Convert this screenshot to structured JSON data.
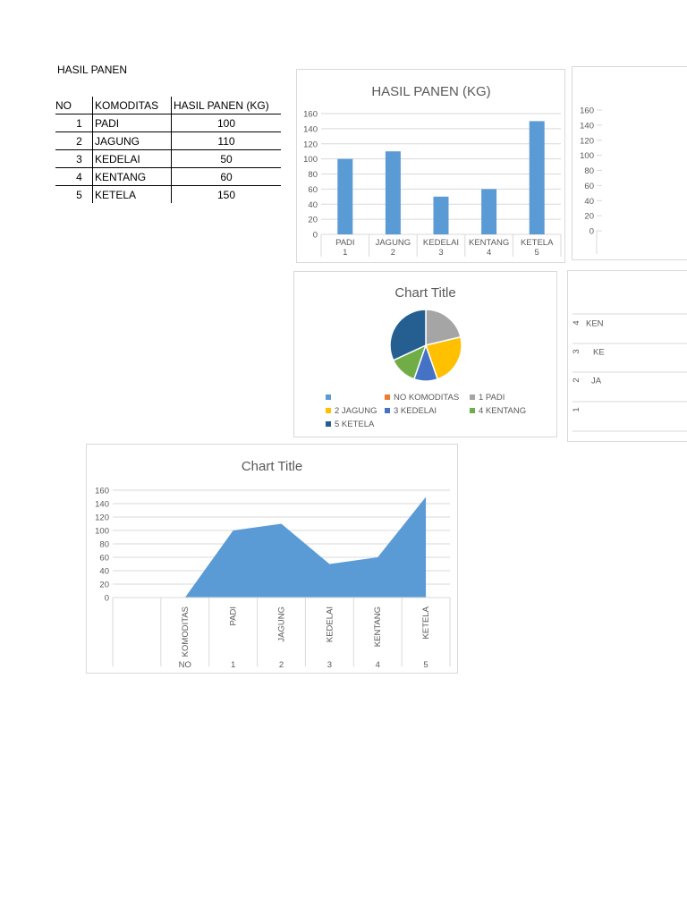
{
  "document": {
    "title": "HASIL PANEN"
  },
  "table": {
    "headers": [
      "NO",
      "KOMODITAS",
      "HASIL PANEN (KG)"
    ],
    "rows": [
      {
        "no": "1",
        "komoditas": "PADI",
        "hasil": "100"
      },
      {
        "no": "2",
        "komoditas": "JAGUNG",
        "hasil": "110"
      },
      {
        "no": "3",
        "komoditas": "KEDELAI",
        "hasil": "50"
      },
      {
        "no": "4",
        "komoditas": "KENTANG",
        "hasil": "60"
      },
      {
        "no": "5",
        "komoditas": "KETELA",
        "hasil": "150"
      }
    ]
  },
  "colors": {
    "bar_blue": "#5b9bd5",
    "orange": "#ed7d31",
    "gray": "#a5a5a5",
    "yellow": "#ffc000",
    "mid_blue": "#4472c4",
    "green": "#70ad47",
    "dark_blue": "#255e91",
    "gridline": "#d9d9d9",
    "axis_text": "#595959"
  },
  "chart_data": [
    {
      "id": "bar-chart",
      "type": "bar",
      "title": "HASIL PANEN (KG)",
      "categories": [
        "PADI\n1",
        "JAGUNG\n2",
        "KEDELAI\n3",
        "KENTANG\n4",
        "KETELA\n5"
      ],
      "category_labels": [
        [
          "PADI",
          "1"
        ],
        [
          "JAGUNG",
          "2"
        ],
        [
          "KEDELAI",
          "3"
        ],
        [
          "KENTANG",
          "4"
        ],
        [
          "KETELA",
          "5"
        ]
      ],
      "values": [
        100,
        110,
        50,
        60,
        150
      ],
      "xlabel": "",
      "ylabel": "",
      "ylim": [
        0,
        160
      ],
      "yticks": [
        "0",
        "20",
        "40",
        "60",
        "80",
        "100",
        "120",
        "140",
        "160"
      ],
      "grid": true
    },
    {
      "id": "partial-chart-right-top",
      "type": "bar",
      "title": "",
      "yticks": [
        "0",
        "20",
        "40",
        "60",
        "80",
        "100",
        "120",
        "140",
        "160"
      ],
      "ylim": [
        0,
        160
      ],
      "note": "cropped at right edge"
    },
    {
      "id": "pie-chart",
      "type": "pie",
      "title": "Chart Title",
      "legend": [
        "",
        "NO KOMODITAS",
        "1 PADI",
        "2 JAGUNG",
        "3 KEDELAI",
        "4 KENTANG",
        "5 KETELA"
      ],
      "slices": [
        {
          "label": "1 PADI",
          "value": 100,
          "color": "#a5a5a5"
        },
        {
          "label": "2 JAGUNG",
          "value": 110,
          "color": "#ffc000"
        },
        {
          "label": "3 KEDELAI",
          "value": 50,
          "color": "#4472c4"
        },
        {
          "label": "4 KENTANG",
          "value": 60,
          "color": "#70ad47"
        },
        {
          "label": "5 KETELA",
          "value": 150,
          "color": "#255e91"
        }
      ],
      "legend_position": "bottom"
    },
    {
      "id": "partial-chart-right-bottom",
      "type": "bar",
      "orientation": "horizontal",
      "category_labels": [
        [
          "4",
          "KEN"
        ],
        [
          "3",
          "KE"
        ],
        [
          "2",
          "JA"
        ],
        [
          "1",
          ""
        ]
      ],
      "note": "cropped at right edge"
    },
    {
      "id": "area-chart",
      "type": "area",
      "title": "Chart Title",
      "categories": [
        "",
        "KOMODITAS\nNO",
        "PADI\n1",
        "JAGUNG\n2",
        "KEDELAI\n3",
        "KENTANG\n4",
        "KETELA\n5"
      ],
      "category_labels": [
        [
          "",
          ""
        ],
        [
          "KOMODITAS",
          "NO"
        ],
        [
          "PADI",
          "1"
        ],
        [
          "JAGUNG",
          "2"
        ],
        [
          "KEDELAI",
          "3"
        ],
        [
          "KENTANG",
          "4"
        ],
        [
          "KETELA",
          "5"
        ]
      ],
      "values": [
        null,
        0,
        100,
        110,
        50,
        60,
        150
      ],
      "ylim": [
        0,
        160
      ],
      "yticks": [
        "0",
        "20",
        "40",
        "60",
        "80",
        "100",
        "120",
        "140",
        "160"
      ],
      "grid": true
    }
  ]
}
